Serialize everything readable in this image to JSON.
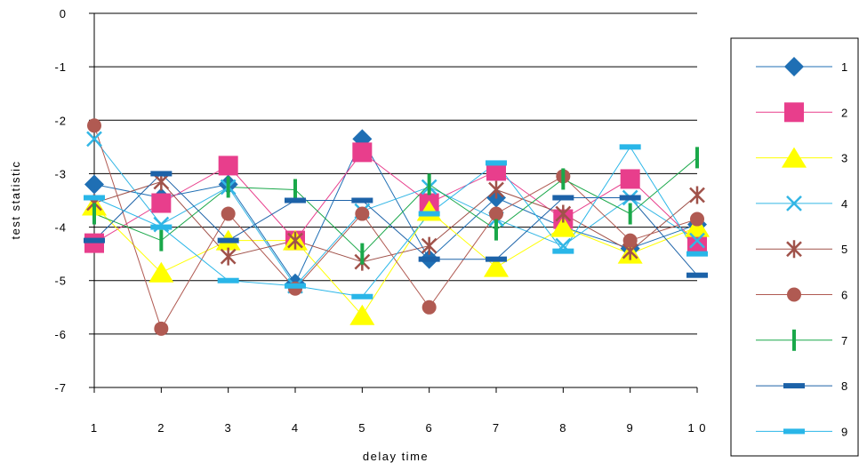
{
  "chart_data": {
    "type": "line",
    "title": "",
    "xlabel": "delay time",
    "ylabel": "test statistic",
    "x": [
      1,
      2,
      3,
      4,
      5,
      6,
      7,
      8,
      9,
      10
    ],
    "x_tick_labels": [
      "1",
      "2",
      "3",
      "4",
      "5",
      "6",
      "7",
      "8",
      "9",
      "1 0"
    ],
    "ylim": [
      -7,
      0
    ],
    "y_ticks": [
      0,
      -1,
      -2,
      -3,
      -4,
      -5,
      -6,
      -7
    ],
    "grid": "horizontal",
    "legend_position": "right",
    "series": [
      {
        "name": "1",
        "color": "#1f6fb4",
        "marker": "diamond",
        "values": [
          -3.2,
          -3.45,
          -3.2,
          -5.05,
          -2.35,
          -4.6,
          -3.45,
          -4.0,
          -4.4,
          -3.95
        ]
      },
      {
        "name": "2",
        "color": "#e83e8c",
        "marker": "square",
        "values": [
          -4.3,
          -3.55,
          -2.85,
          -4.25,
          -2.6,
          -3.55,
          -2.95,
          -3.85,
          -3.1,
          -4.3
        ]
      },
      {
        "name": "3",
        "color": "#ffff00",
        "marker": "triangle",
        "values": [
          -3.6,
          -4.85,
          -4.25,
          -4.25,
          -5.65,
          -3.7,
          -4.75,
          -4.0,
          -4.5,
          -4.0
        ]
      },
      {
        "name": "4",
        "color": "#33b6e5",
        "marker": "x",
        "values": [
          -2.35,
          -3.95,
          -3.25,
          -5.1,
          -3.7,
          -3.25,
          -3.85,
          -4.35,
          -3.45,
          -4.25
        ]
      },
      {
        "name": "5",
        "color": "#a0524a",
        "marker": "star",
        "values": [
          -3.55,
          -3.15,
          -4.55,
          -4.25,
          -4.65,
          -4.35,
          -3.3,
          -3.75,
          -4.45,
          -3.4
        ]
      },
      {
        "name": "6",
        "color": "#b05a52",
        "marker": "circle",
        "values": [
          -2.1,
          -5.9,
          -3.75,
          -5.15,
          -3.75,
          -5.5,
          -3.75,
          -3.05,
          -4.25,
          -3.85
        ]
      },
      {
        "name": "7",
        "color": "#1aa84a",
        "marker": "vbar",
        "values": [
          -3.75,
          -4.25,
          -3.25,
          -3.3,
          -4.5,
          -3.2,
          -4.05,
          -3.1,
          -3.75,
          -2.7
        ]
      },
      {
        "name": "8",
        "color": "#1c62a8",
        "marker": "hbar",
        "values": [
          -4.25,
          -3.0,
          -4.25,
          -3.5,
          -3.5,
          -4.6,
          -4.6,
          -3.45,
          -3.45,
          -4.9
        ]
      },
      {
        "name": "9",
        "color": "#29b6e8",
        "marker": "hbar",
        "values": [
          -3.45,
          -4.0,
          -5.0,
          -5.1,
          -5.3,
          -3.75,
          -2.8,
          -4.45,
          -2.5,
          -4.5
        ]
      }
    ]
  }
}
